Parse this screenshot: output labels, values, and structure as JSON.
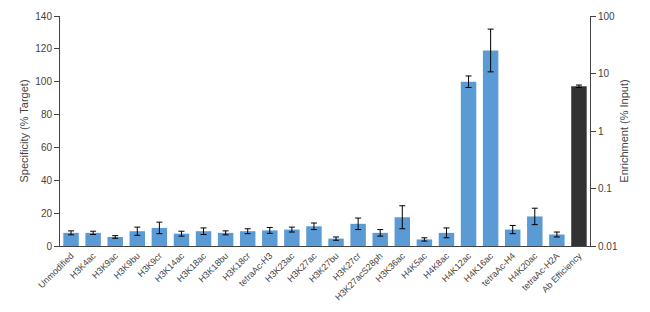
{
  "chart_data": {
    "type": "bar",
    "categories": [
      "Unmodified",
      "H3K4ac",
      "H3K9ac",
      "H3K9bu",
      "H3K9cr",
      "H3K14ac",
      "H3K18ac",
      "H3K18bu",
      "H3K18cr",
      "tetraAc-H3",
      "H3K23ac",
      "H3K27ac",
      "H3K27bu",
      "H3K27cr",
      "H3K27acS28ph",
      "H3K36ac",
      "H4K5ac",
      "H4K8ac",
      "H4K12ac",
      "H4K16ac",
      "tetraAc-H4",
      "H4K20ac",
      "tetraAc-H2A",
      "Ab Efficiency"
    ],
    "series": [
      {
        "color": "#5B9BD5",
        "values": [
          8.0,
          8.0,
          5.5,
          9.0,
          11.0,
          7.5,
          9.0,
          8.0,
          9.0,
          9.5,
          10.0,
          12.0,
          4.5,
          13.5,
          8.0,
          17.5,
          4.0,
          8.0,
          100.0,
          119.0,
          10.0,
          18.0,
          7.0,
          null
        ],
        "errors": [
          1.2,
          1.0,
          0.8,
          2.5,
          3.5,
          1.5,
          2.0,
          1.2,
          1.5,
          1.8,
          1.5,
          2.0,
          1.0,
          3.5,
          2.0,
          7.0,
          1.0,
          3.0,
          3.5,
          13.0,
          2.5,
          5.0,
          1.5,
          null
        ]
      },
      {
        "color": "#333333",
        "axis": "y2",
        "values": [
          null,
          null,
          null,
          null,
          null,
          null,
          null,
          null,
          null,
          null,
          null,
          null,
          null,
          null,
          null,
          null,
          null,
          null,
          null,
          null,
          null,
          null,
          null,
          6.0
        ],
        "errors": [
          null,
          null,
          null,
          null,
          null,
          null,
          null,
          null,
          null,
          null,
          null,
          null,
          null,
          null,
          null,
          null,
          null,
          null,
          null,
          null,
          null,
          null,
          null,
          0.3
        ]
      }
    ],
    "ylabel": "Specificity (% Target)",
    "y2label": "Enrichment (% Input)",
    "ylim": [
      0,
      140
    ],
    "yticks": [
      0,
      20,
      40,
      60,
      80,
      100,
      120,
      140
    ],
    "y2lim": [
      0.01,
      100
    ],
    "y2ticks": [
      0.01,
      0.1,
      1,
      10,
      100
    ],
    "log": "y2",
    "grid": false
  }
}
